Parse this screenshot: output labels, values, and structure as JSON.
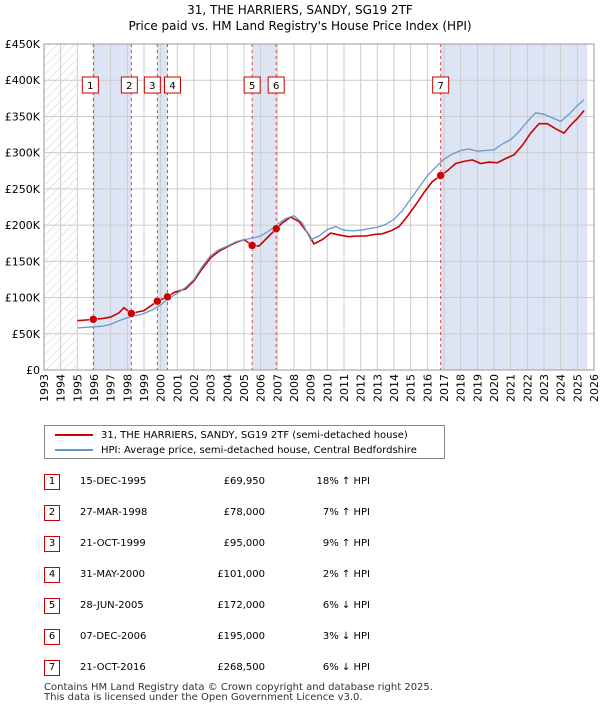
{
  "title_line1": "31, THE HARRIERS, SANDY, SG19 2TF",
  "title_line2": "Price paid vs. HM Land Registry's House Price Index (HPI)",
  "colors": {
    "property": "#cc0000",
    "hpi": "#6699cc",
    "shade": "#dde4f4",
    "grid": "#cccccc"
  },
  "chart_data": {
    "type": "line",
    "title": "Price paid vs. HM Land Registry's House Price Index (HPI)",
    "xlim": [
      1993,
      2026
    ],
    "ylim": [
      0,
      450000
    ],
    "x_ticks": [
      "1993",
      "1994",
      "1995",
      "1996",
      "1997",
      "1998",
      "1999",
      "2000",
      "2001",
      "2002",
      "2003",
      "2004",
      "2005",
      "2006",
      "2007",
      "2008",
      "2009",
      "2010",
      "2011",
      "2012",
      "2013",
      "2014",
      "2015",
      "2016",
      "2017",
      "2018",
      "2019",
      "2020",
      "2021",
      "2022",
      "2023",
      "2024",
      "2025",
      "2026"
    ],
    "y_ticks": [
      {
        "value": 0,
        "label": "£0"
      },
      {
        "value": 50000,
        "label": "£50K"
      },
      {
        "value": 100000,
        "label": "£100K"
      },
      {
        "value": 150000,
        "label": "£150K"
      },
      {
        "value": 200000,
        "label": "£200K"
      },
      {
        "value": 250000,
        "label": "£250K"
      },
      {
        "value": 300000,
        "label": "£300K"
      },
      {
        "value": 350000,
        "label": "£350K"
      },
      {
        "value": 400000,
        "label": "£400K"
      },
      {
        "value": 450000,
        "label": "£450K"
      }
    ],
    "data_start": 1995.0,
    "shaded_ranges": [
      [
        1995.96,
        1998.24
      ],
      [
        1999.8,
        2000.41
      ],
      [
        2005.49,
        2006.93
      ],
      [
        2016.8,
        2025.6
      ]
    ],
    "series": [
      {
        "name": "31, THE HARRIERS, SANDY, SG19 2TF (semi-detached house)",
        "key": "property",
        "points": [
          [
            1995.0,
            68000
          ],
          [
            1995.5,
            69000
          ],
          [
            1995.96,
            69950
          ],
          [
            1996.5,
            71000
          ],
          [
            1997.0,
            73000
          ],
          [
            1997.5,
            79000
          ],
          [
            1997.8,
            86000
          ],
          [
            1998.24,
            78000
          ],
          [
            1998.6,
            80000
          ],
          [
            1999.0,
            82000
          ],
          [
            1999.5,
            90000
          ],
          [
            1999.8,
            95000
          ],
          [
            2000.41,
            101000
          ],
          [
            2000.8,
            107000
          ],
          [
            2001.5,
            112000
          ],
          [
            2002.0,
            123000
          ],
          [
            2002.5,
            140000
          ],
          [
            2003.0,
            155000
          ],
          [
            2003.5,
            164000
          ],
          [
            2004.0,
            170000
          ],
          [
            2004.5,
            176000
          ],
          [
            2005.0,
            180000
          ],
          [
            2005.49,
            172000
          ],
          [
            2005.9,
            171000
          ],
          [
            2006.5,
            185000
          ],
          [
            2006.93,
            195000
          ],
          [
            2007.3,
            203000
          ],
          [
            2007.8,
            211000
          ],
          [
            2008.3,
            205000
          ],
          [
            2008.8,
            190000
          ],
          [
            2009.2,
            174000
          ],
          [
            2009.7,
            180000
          ],
          [
            2010.2,
            189000
          ],
          [
            2010.8,
            186000
          ],
          [
            2011.3,
            184000
          ],
          [
            2011.8,
            185000
          ],
          [
            2012.3,
            185000
          ],
          [
            2012.8,
            187000
          ],
          [
            2013.3,
            188000
          ],
          [
            2013.8,
            192000
          ],
          [
            2014.3,
            198000
          ],
          [
            2014.8,
            212000
          ],
          [
            2015.3,
            228000
          ],
          [
            2015.8,
            245000
          ],
          [
            2016.3,
            260000
          ],
          [
            2016.8,
            268500
          ],
          [
            2017.2,
            275000
          ],
          [
            2017.7,
            285000
          ],
          [
            2018.2,
            288000
          ],
          [
            2018.7,
            290000
          ],
          [
            2019.2,
            285000
          ],
          [
            2019.7,
            287000
          ],
          [
            2020.2,
            286000
          ],
          [
            2020.7,
            292000
          ],
          [
            2021.2,
            297000
          ],
          [
            2021.7,
            310000
          ],
          [
            2022.2,
            327000
          ],
          [
            2022.7,
            340000
          ],
          [
            2023.2,
            340000
          ],
          [
            2023.7,
            333000
          ],
          [
            2024.2,
            327000
          ],
          [
            2024.6,
            338000
          ],
          [
            2025.0,
            347000
          ],
          [
            2025.4,
            358000
          ]
        ]
      },
      {
        "name": "HPI: Average price, semi-detached house, Central Bedfordshire",
        "key": "hpi",
        "points": [
          [
            1995.0,
            58000
          ],
          [
            1995.5,
            59000
          ],
          [
            1996.0,
            59500
          ],
          [
            1996.5,
            60500
          ],
          [
            1997.0,
            63000
          ],
          [
            1997.5,
            68000
          ],
          [
            1998.0,
            72000
          ],
          [
            1998.5,
            75000
          ],
          [
            1999.0,
            78000
          ],
          [
            1999.5,
            83000
          ],
          [
            2000.0,
            90000
          ],
          [
            2000.5,
            99000
          ],
          [
            2001.0,
            106000
          ],
          [
            2001.5,
            114000
          ],
          [
            2002.0,
            125000
          ],
          [
            2002.5,
            143000
          ],
          [
            2003.0,
            158000
          ],
          [
            2003.5,
            166000
          ],
          [
            2004.0,
            171000
          ],
          [
            2004.5,
            177000
          ],
          [
            2005.0,
            180000
          ],
          [
            2005.5,
            182000
          ],
          [
            2006.0,
            185000
          ],
          [
            2006.5,
            192000
          ],
          [
            2007.0,
            201000
          ],
          [
            2007.5,
            209000
          ],
          [
            2008.0,
            213000
          ],
          [
            2008.5,
            203000
          ],
          [
            2009.0,
            180000
          ],
          [
            2009.5,
            185000
          ],
          [
            2010.0,
            194000
          ],
          [
            2010.5,
            198000
          ],
          [
            2011.0,
            193000
          ],
          [
            2011.5,
            192000
          ],
          [
            2012.0,
            193000
          ],
          [
            2012.5,
            195000
          ],
          [
            2013.0,
            197000
          ],
          [
            2013.5,
            201000
          ],
          [
            2014.0,
            208000
          ],
          [
            2014.5,
            220000
          ],
          [
            2015.0,
            236000
          ],
          [
            2015.5,
            252000
          ],
          [
            2016.0,
            268000
          ],
          [
            2016.5,
            280000
          ],
          [
            2017.0,
            291000
          ],
          [
            2017.5,
            298000
          ],
          [
            2018.0,
            303000
          ],
          [
            2018.5,
            305000
          ],
          [
            2019.0,
            302000
          ],
          [
            2019.5,
            303000
          ],
          [
            2020.0,
            304000
          ],
          [
            2020.5,
            312000
          ],
          [
            2021.0,
            318000
          ],
          [
            2021.5,
            329000
          ],
          [
            2022.0,
            343000
          ],
          [
            2022.5,
            355000
          ],
          [
            2023.0,
            353000
          ],
          [
            2023.5,
            348000
          ],
          [
            2024.0,
            343000
          ],
          [
            2024.5,
            353000
          ],
          [
            2025.0,
            365000
          ],
          [
            2025.4,
            373000
          ]
        ]
      }
    ],
    "sales": [
      {
        "label": "1",
        "x": 1995.96,
        "price": 69950
      },
      {
        "label": "2",
        "x": 1998.24,
        "price": 78000
      },
      {
        "label": "3",
        "x": 1999.8,
        "price": 95000
      },
      {
        "label": "4",
        "x": 2000.41,
        "price": 101000
      },
      {
        "label": "5",
        "x": 2005.49,
        "price": 172000
      },
      {
        "label": "6",
        "x": 2006.93,
        "price": 195000
      },
      {
        "label": "7",
        "x": 2016.8,
        "price": 268500
      }
    ]
  },
  "legend": {
    "property_label": "31, THE HARRIERS, SANDY, SG19 2TF (semi-detached house)",
    "hpi_label": "HPI: Average price, semi-detached house, Central Bedfordshire"
  },
  "transactions": [
    {
      "num": "1",
      "date": "15-DEC-1995",
      "price": "£69,950",
      "hpi": "18% ↑ HPI"
    },
    {
      "num": "2",
      "date": "27-MAR-1998",
      "price": "£78,000",
      "hpi": "7% ↑ HPI"
    },
    {
      "num": "3",
      "date": "21-OCT-1999",
      "price": "£95,000",
      "hpi": "9% ↑ HPI"
    },
    {
      "num": "4",
      "date": "31-MAY-2000",
      "price": "£101,000",
      "hpi": "2% ↑ HPI"
    },
    {
      "num": "5",
      "date": "28-JUN-2005",
      "price": "£172,000",
      "hpi": "6% ↓ HPI"
    },
    {
      "num": "6",
      "date": "07-DEC-2006",
      "price": "£195,000",
      "hpi": "3% ↓ HPI"
    },
    {
      "num": "7",
      "date": "21-OCT-2016",
      "price": "£268,500",
      "hpi": "6% ↓ HPI"
    }
  ],
  "footer_line1": "Contains HM Land Registry data © Crown copyright and database right 2025.",
  "footer_line2": "This data is licensed under the Open Government Licence v3.0."
}
